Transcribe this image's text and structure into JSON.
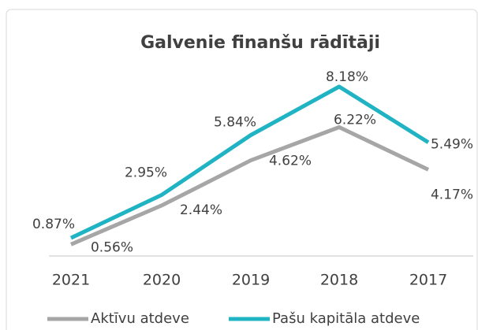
{
  "chart_data": {
    "type": "line",
    "title": "Galvenie finanšu rādītāji",
    "categories": [
      "2021",
      "2020",
      "2019",
      "2018",
      "2017"
    ],
    "series": [
      {
        "name": "Aktīvu atdeve",
        "color": "#a6a6a6",
        "values": [
          0.56,
          2.44,
          4.62,
          6.22,
          4.17
        ],
        "value_labels": [
          "0.56%",
          "2.44%",
          "4.62%",
          "6.22%",
          "4.17%"
        ]
      },
      {
        "name": "Pašu kapitāla atdeve",
        "color": "#1fb3c3",
        "values": [
          0.87,
          2.95,
          5.84,
          8.18,
          5.49
        ],
        "value_labels": [
          "0.87%",
          "2.95%",
          "5.84%",
          "8.18%",
          "5.49%"
        ]
      }
    ],
    "legend": "bottom"
  }
}
